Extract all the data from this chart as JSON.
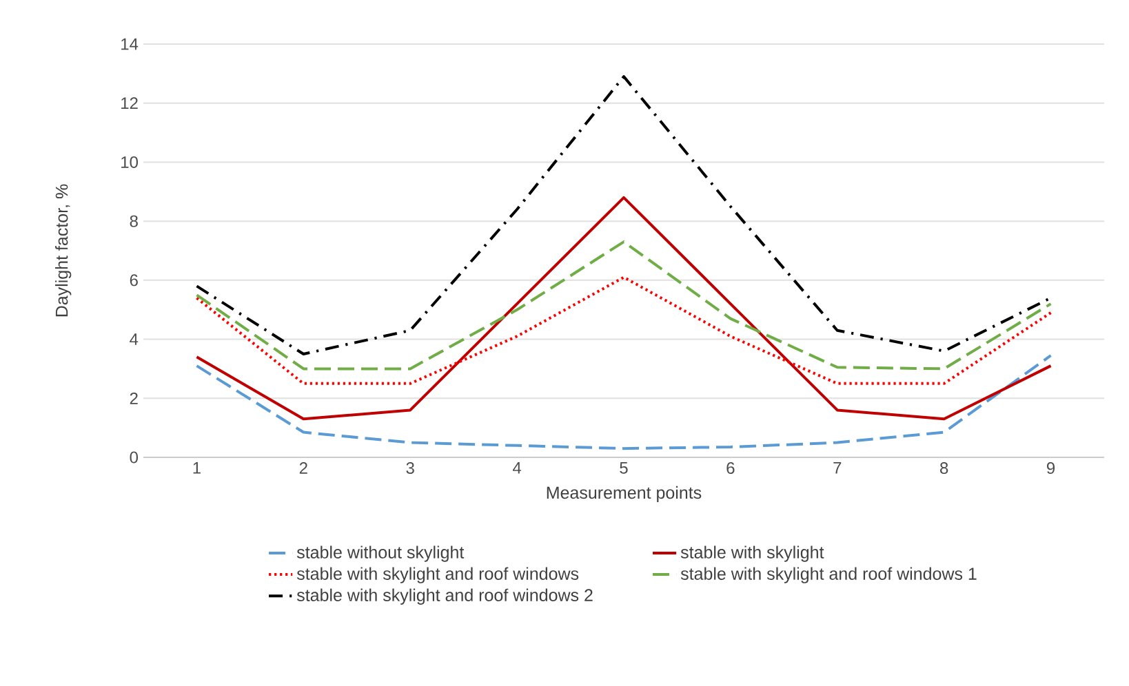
{
  "chart_data": {
    "type": "line",
    "xlabel": "Measurement points",
    "ylabel": "Daylight factor, %",
    "categories": [
      "1",
      "2",
      "3",
      "4",
      "5",
      "6",
      "7",
      "8",
      "9"
    ],
    "ylim": [
      0,
      14
    ],
    "yticks": [
      0,
      2,
      4,
      6,
      8,
      10,
      12,
      14
    ],
    "grid": "y",
    "legend": "bottom",
    "series": [
      {
        "name": "stable without skylight",
        "color": "#5b9bd5",
        "line_style": "dashed",
        "values": [
          3.1,
          0.85,
          0.5,
          0.4,
          0.3,
          0.35,
          0.5,
          0.85,
          3.45
        ]
      },
      {
        "name": "stable with skylight",
        "color": "#c00000",
        "line_style": "solid",
        "values": [
          3.4,
          1.3,
          1.6,
          5.2,
          8.8,
          5.2,
          1.6,
          1.3,
          3.1
        ]
      },
      {
        "name": "stable with skylight and roof windows",
        "color": "#ff0000",
        "line_style": "dotted",
        "values": [
          5.4,
          2.5,
          2.5,
          4.1,
          6.1,
          4.1,
          2.5,
          2.5,
          4.9
        ]
      },
      {
        "name": "stable with skylight and roof windows 1",
        "color": "#70ad47",
        "line_style": "dashed",
        "values": [
          5.5,
          3.0,
          3.0,
          5.0,
          7.3,
          4.7,
          3.05,
          3.0,
          5.2
        ]
      },
      {
        "name": "stable with skylight and roof windows 2",
        "color": "#000000",
        "line_style": "dashdot",
        "values": [
          5.8,
          3.5,
          4.3,
          8.4,
          12.9,
          8.5,
          4.3,
          3.6,
          5.4
        ]
      }
    ]
  }
}
